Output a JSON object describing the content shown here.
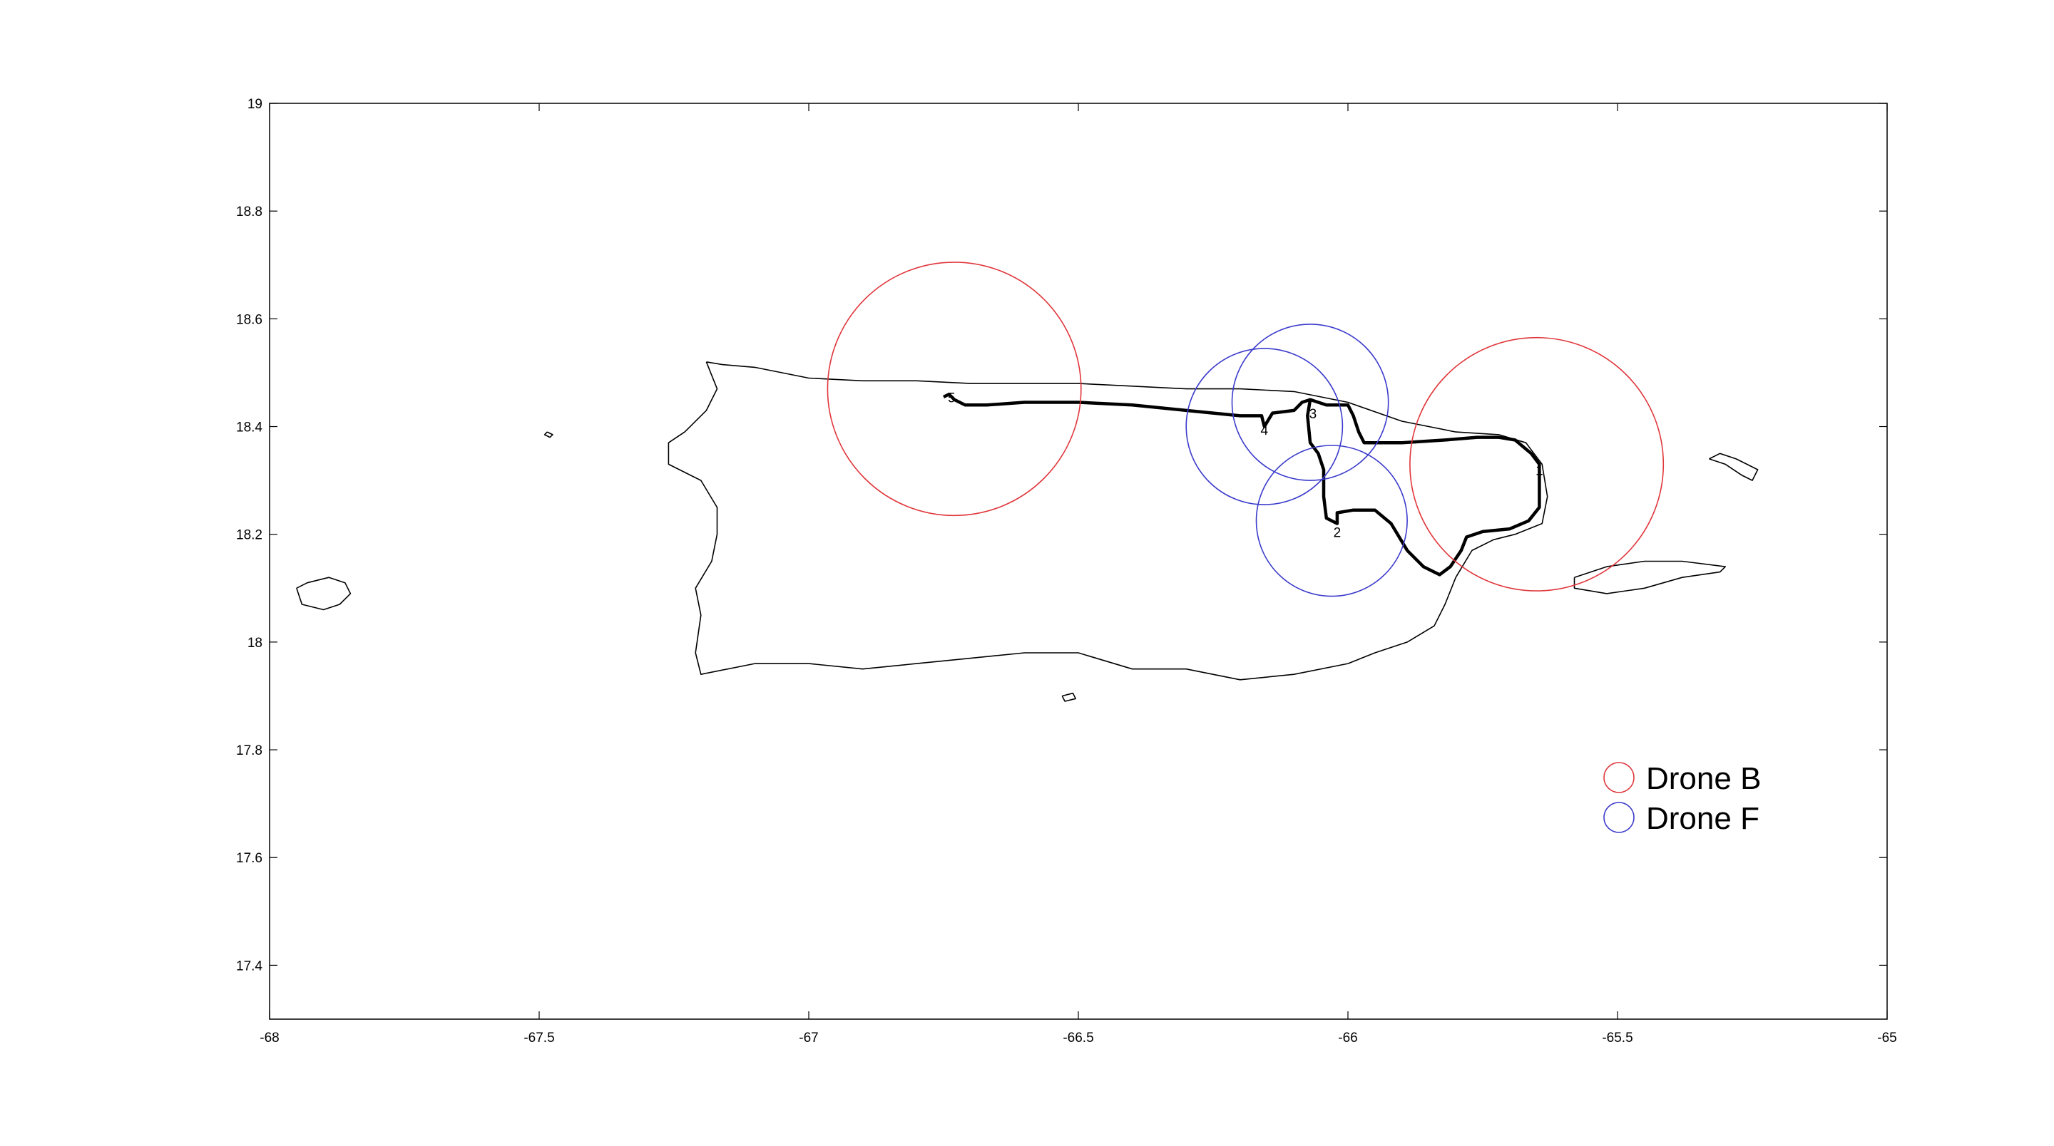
{
  "chart_data": {
    "type": "map",
    "title": "",
    "xlabel": "",
    "ylabel": "",
    "xlim": [
      -68,
      -65
    ],
    "ylim": [
      17.3,
      19
    ],
    "x_ticks": [
      "-68",
      "-67.5",
      "-67",
      "-66.5",
      "-66",
      "-65.5",
      "-65"
    ],
    "y_ticks": [
      "19",
      "18.8",
      "18.6",
      "18.4",
      "18.2",
      "18",
      "17.8",
      "17.6",
      "17.4"
    ],
    "grid": false,
    "legend": {
      "placement": "lower-right",
      "entries": [
        {
          "label": "Drone  B",
          "color": "#e0363b",
          "marker": "circle"
        },
        {
          "label": "Drone F",
          "color": "#3b3bcc",
          "marker": "circle"
        }
      ]
    },
    "coverage_circles": [
      {
        "series": "Drone  B",
        "lon": -66.73,
        "lat": 18.47,
        "radius_deg": 0.235
      },
      {
        "series": "Drone  B",
        "lon": -65.65,
        "lat": 18.33,
        "radius_deg": 0.235
      },
      {
        "series": "Drone F",
        "lon": -66.155,
        "lat": 18.4,
        "radius_deg": 0.145
      },
      {
        "series": "Drone F",
        "lon": -66.07,
        "lat": 18.445,
        "radius_deg": 0.145
      },
      {
        "series": "Drone F",
        "lon": -66.03,
        "lat": 18.225,
        "radius_deg": 0.14
      }
    ],
    "waypoints": [
      {
        "label": "1",
        "lon": -65.645,
        "lat": 18.31
      },
      {
        "label": "2",
        "lon": -66.02,
        "lat": 18.195
      },
      {
        "label": "3",
        "lon": -66.065,
        "lat": 18.415
      },
      {
        "label": "4",
        "lon": -66.155,
        "lat": 18.385
      },
      {
        "label": "5",
        "lon": -66.735,
        "lat": 18.445
      }
    ],
    "route": [
      [
        -66.75,
        18.455
      ],
      [
        -66.74,
        18.46
      ],
      [
        -66.73,
        18.45
      ],
      [
        -66.71,
        18.44
      ],
      [
        -66.67,
        18.44
      ],
      [
        -66.6,
        18.445
      ],
      [
        -66.5,
        18.445
      ],
      [
        -66.4,
        18.44
      ],
      [
        -66.3,
        18.43
      ],
      [
        -66.25,
        18.425
      ],
      [
        -66.2,
        18.42
      ],
      [
        -66.16,
        18.42
      ],
      [
        -66.155,
        18.4
      ],
      [
        -66.14,
        18.425
      ],
      [
        -66.1,
        18.43
      ],
      [
        -66.085,
        18.445
      ],
      [
        -66.07,
        18.45
      ],
      [
        -66.075,
        18.42
      ],
      [
        -66.07,
        18.37
      ],
      [
        -66.055,
        18.35
      ],
      [
        -66.045,
        18.32
      ],
      [
        -66.045,
        18.27
      ],
      [
        -66.04,
        18.23
      ],
      [
        -66.02,
        18.22
      ],
      [
        -66.02,
        18.24
      ],
      [
        -65.99,
        18.245
      ],
      [
        -65.95,
        18.245
      ],
      [
        -65.92,
        18.22
      ],
      [
        -65.89,
        18.17
      ],
      [
        -65.86,
        18.14
      ],
      [
        -65.83,
        18.125
      ],
      [
        -65.81,
        18.14
      ],
      [
        -65.79,
        18.17
      ],
      [
        -65.78,
        18.195
      ],
      [
        -65.75,
        18.205
      ],
      [
        -65.7,
        18.21
      ],
      [
        -65.665,
        18.225
      ],
      [
        -65.645,
        18.25
      ],
      [
        -65.645,
        18.28
      ],
      [
        -65.645,
        18.33
      ],
      [
        -65.66,
        18.35
      ],
      [
        -65.69,
        18.375
      ],
      [
        -65.72,
        18.38
      ],
      [
        -65.76,
        18.38
      ],
      [
        -65.82,
        18.375
      ],
      [
        -65.9,
        18.37
      ],
      [
        -65.97,
        18.37
      ],
      [
        -65.98,
        18.39
      ],
      [
        -65.99,
        18.42
      ],
      [
        -66.0,
        18.44
      ],
      [
        -66.04,
        18.44
      ],
      [
        -66.07,
        18.45
      ]
    ],
    "land_outlines": [
      {
        "name": "main-island",
        "points": [
          [
            -67.19,
            18.52
          ],
          [
            -67.16,
            18.515
          ],
          [
            -67.1,
            18.51
          ],
          [
            -67.0,
            18.49
          ],
          [
            -66.9,
            18.485
          ],
          [
            -66.8,
            18.485
          ],
          [
            -66.7,
            18.48
          ],
          [
            -66.6,
            18.48
          ],
          [
            -66.5,
            18.48
          ],
          [
            -66.4,
            18.475
          ],
          [
            -66.3,
            18.47
          ],
          [
            -66.2,
            18.47
          ],
          [
            -66.1,
            18.465
          ],
          [
            -66.0,
            18.445
          ],
          [
            -65.9,
            18.41
          ],
          [
            -65.8,
            18.39
          ],
          [
            -65.72,
            18.385
          ],
          [
            -65.67,
            18.37
          ],
          [
            -65.64,
            18.33
          ],
          [
            -65.63,
            18.27
          ],
          [
            -65.64,
            18.22
          ],
          [
            -65.69,
            18.2
          ],
          [
            -65.73,
            18.19
          ],
          [
            -65.77,
            18.17
          ],
          [
            -65.8,
            18.12
          ],
          [
            -65.82,
            18.07
          ],
          [
            -65.84,
            18.03
          ],
          [
            -65.89,
            18.0
          ],
          [
            -65.95,
            17.98
          ],
          [
            -66.0,
            17.96
          ],
          [
            -66.1,
            17.94
          ],
          [
            -66.2,
            17.93
          ],
          [
            -66.3,
            17.95
          ],
          [
            -66.4,
            17.95
          ],
          [
            -66.5,
            17.98
          ],
          [
            -66.6,
            17.98
          ],
          [
            -66.7,
            17.97
          ],
          [
            -66.8,
            17.96
          ],
          [
            -66.9,
            17.95
          ],
          [
            -67.0,
            17.96
          ],
          [
            -67.1,
            17.96
          ],
          [
            -67.2,
            17.94
          ],
          [
            -67.21,
            17.98
          ],
          [
            -67.2,
            18.05
          ],
          [
            -67.21,
            18.1
          ],
          [
            -67.18,
            18.15
          ],
          [
            -67.17,
            18.2
          ],
          [
            -67.17,
            18.25
          ],
          [
            -67.2,
            18.3
          ],
          [
            -67.26,
            18.33
          ],
          [
            -67.26,
            18.37
          ],
          [
            -67.23,
            18.39
          ],
          [
            -67.19,
            18.43
          ],
          [
            -67.17,
            18.47
          ],
          [
            -67.19,
            18.52
          ]
        ]
      },
      {
        "name": "mona-island",
        "points": [
          [
            -67.95,
            18.1
          ],
          [
            -67.93,
            18.11
          ],
          [
            -67.89,
            18.12
          ],
          [
            -67.86,
            18.11
          ],
          [
            -67.85,
            18.09
          ],
          [
            -67.87,
            18.07
          ],
          [
            -67.9,
            18.06
          ],
          [
            -67.94,
            18.07
          ],
          [
            -67.95,
            18.1
          ]
        ]
      },
      {
        "name": "vieques",
        "points": [
          [
            -65.58,
            18.12
          ],
          [
            -65.52,
            18.14
          ],
          [
            -65.45,
            18.15
          ],
          [
            -65.38,
            18.15
          ],
          [
            -65.3,
            18.14
          ],
          [
            -65.31,
            18.13
          ],
          [
            -65.38,
            18.12
          ],
          [
            -65.45,
            18.1
          ],
          [
            -65.52,
            18.09
          ],
          [
            -65.58,
            18.1
          ],
          [
            -65.58,
            18.12
          ]
        ]
      },
      {
        "name": "culebra",
        "points": [
          [
            -65.33,
            18.34
          ],
          [
            -65.3,
            18.33
          ],
          [
            -65.27,
            18.31
          ],
          [
            -65.25,
            18.3
          ],
          [
            -65.24,
            18.32
          ],
          [
            -65.26,
            18.33
          ],
          [
            -65.28,
            18.34
          ],
          [
            -65.31,
            18.35
          ],
          [
            -65.33,
            18.34
          ]
        ]
      },
      {
        "name": "desecheo",
        "points": [
          [
            -67.485,
            18.39
          ],
          [
            -67.475,
            18.385
          ],
          [
            -67.48,
            18.38
          ],
          [
            -67.49,
            18.385
          ],
          [
            -67.485,
            18.39
          ]
        ]
      },
      {
        "name": "caja-de-muertos",
        "points": [
          [
            -66.53,
            17.9
          ],
          [
            -66.51,
            17.905
          ],
          [
            -66.505,
            17.895
          ],
          [
            -66.525,
            17.89
          ],
          [
            -66.53,
            17.9
          ]
        ]
      }
    ]
  }
}
